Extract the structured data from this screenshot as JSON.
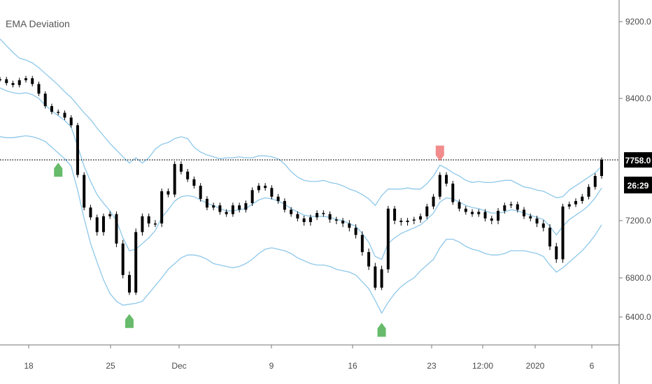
{
  "chart_data": {
    "type": "line",
    "title": "EMA Deviation",
    "instrument_style": "candlestick",
    "y_axis": {
      "position": "right",
      "ticks": [
        "9200.0",
        "8400.0",
        "7200.0",
        "6800.0",
        "6400.0"
      ],
      "tick_values": [
        9200,
        8400,
        7200,
        6800,
        6400
      ],
      "range": [
        6150,
        9300
      ]
    },
    "x_axis": {
      "tick_labels": [
        "18",
        "25",
        "Dec",
        "9",
        "16",
        "23",
        "12:00",
        "2020",
        "6"
      ]
    },
    "last_price": {
      "label": "7758.0",
      "value": 7758
    },
    "countdown": {
      "label": "26:29"
    },
    "series": [
      {
        "name": "",
        "role": "price",
        "color": "#000000",
        "values": [
          8600,
          8560,
          8540,
          8590,
          8610,
          8550,
          8450,
          8320,
          8260,
          8250,
          8200,
          8120,
          7620,
          7320,
          7230,
          7120,
          7240,
          7260,
          7040,
          6820,
          6650,
          7120,
          7240,
          7180,
          7180,
          7470,
          7440,
          7720,
          7650,
          7580,
          7520,
          7400,
          7320,
          7340,
          7280,
          7260,
          7340,
          7300,
          7360,
          7480,
          7520,
          7500,
          7420,
          7380,
          7300,
          7260,
          7220,
          7190,
          7230,
          7270,
          7260,
          7210,
          7200,
          7180,
          7150,
          7100,
          6980,
          6880,
          6700,
          6860,
          7310,
          7200,
          7190,
          7200,
          7210,
          7240,
          7330,
          7420,
          7620,
          7540,
          7370,
          7310,
          7280,
          7260,
          7280,
          7220,
          7200,
          7290,
          7340,
          7350,
          7300,
          7240,
          7220,
          7180,
          7150,
          7020,
          6930,
          7330,
          7350,
          7380,
          7420,
          7510,
          7610,
          7758
        ]
      },
      {
        "name": "",
        "role": "upper-band",
        "color": "#8ec8ea",
        "values": [
          9020,
          8950,
          8880,
          8820,
          8800,
          8770,
          8720,
          8660,
          8600,
          8540,
          8470,
          8410,
          8330,
          8250,
          8180,
          8090,
          8010,
          7930,
          7860,
          7790,
          7730,
          7780,
          7730,
          7780,
          7870,
          7920,
          7940,
          7980,
          8000,
          7980,
          7890,
          7840,
          7810,
          7790,
          7770,
          7780,
          7780,
          7790,
          7780,
          7780,
          7800,
          7800,
          7790,
          7770,
          7720,
          7650,
          7600,
          7570,
          7560,
          7560,
          7570,
          7550,
          7540,
          7520,
          7490,
          7470,
          7440,
          7400,
          7340,
          7430,
          7490,
          7490,
          7490,
          7500,
          7490,
          7490,
          7540,
          7610,
          7710,
          7680,
          7640,
          7610,
          7570,
          7550,
          7560,
          7550,
          7550,
          7560,
          7570,
          7570,
          7540,
          7510,
          7500,
          7480,
          7470,
          7440,
          7410,
          7420,
          7480,
          7520,
          7560,
          7600,
          7640,
          7700
        ]
      },
      {
        "name": "",
        "role": "middle-band",
        "color": "#8ec8ea",
        "values": [
          8510,
          8480,
          8460,
          8450,
          8460,
          8440,
          8400,
          8330,
          8270,
          8220,
          8170,
          8100,
          7900,
          7700,
          7560,
          7440,
          7360,
          7290,
          7200,
          7080,
          6990,
          7000,
          7040,
          7080,
          7130,
          7230,
          7300,
          7380,
          7420,
          7430,
          7420,
          7390,
          7360,
          7340,
          7310,
          7290,
          7290,
          7300,
          7310,
          7350,
          7390,
          7410,
          7400,
          7380,
          7350,
          7310,
          7280,
          7250,
          7240,
          7240,
          7240,
          7230,
          7210,
          7200,
          7180,
          7160,
          7110,
          7050,
          6950,
          6930,
          7040,
          7080,
          7110,
          7130,
          7150,
          7170,
          7210,
          7270,
          7370,
          7410,
          7400,
          7370,
          7340,
          7320,
          7310,
          7290,
          7270,
          7270,
          7280,
          7300,
          7290,
          7270,
          7250,
          7230,
          7210,
          7160,
          7100,
          7160,
          7210,
          7250,
          7290,
          7340,
          7410,
          7500
        ]
      },
      {
        "name": "",
        "role": "lower-band",
        "color": "#8ec8ea",
        "values": [
          8000,
          7990,
          7990,
          8000,
          8010,
          8000,
          7980,
          7950,
          7890,
          7830,
          7770,
          7700,
          7480,
          7220,
          7040,
          6910,
          6780,
          6640,
          6560,
          6520,
          6530,
          6540,
          6560,
          6640,
          6720,
          6800,
          6860,
          6900,
          6940,
          6960,
          6960,
          6950,
          6930,
          6900,
          6890,
          6880,
          6870,
          6880,
          6900,
          6930,
          6970,
          7000,
          7010,
          7000,
          6990,
          6970,
          6940,
          6920,
          6900,
          6890,
          6890,
          6880,
          6860,
          6850,
          6840,
          6820,
          6760,
          6690,
          6570,
          6440,
          6550,
          6640,
          6710,
          6760,
          6800,
          6850,
          6890,
          6930,
          7010,
          7070,
          7070,
          7050,
          7020,
          7000,
          6990,
          6970,
          6960,
          6960,
          6970,
          6990,
          6990,
          6990,
          6980,
          6970,
          6950,
          6890,
          6840,
          6870,
          6910,
          6950,
          6990,
          7040,
          7100,
          7170
        ]
      }
    ],
    "markers": [
      {
        "type": "buy",
        "color": "#4caf50",
        "index": 9
      },
      {
        "type": "buy",
        "color": "#4caf50",
        "index": 20
      },
      {
        "type": "sell",
        "color": "#f07878",
        "index": 68
      },
      {
        "type": "buy",
        "color": "#4caf50",
        "index": 59
      }
    ],
    "grid": false,
    "legend": "none",
    "colors": {
      "candle": "#000000",
      "band": "#8ec8ea",
      "buy_marker": "#4caf50",
      "sell_marker": "#f07878",
      "badge_bg": "#000000"
    }
  }
}
